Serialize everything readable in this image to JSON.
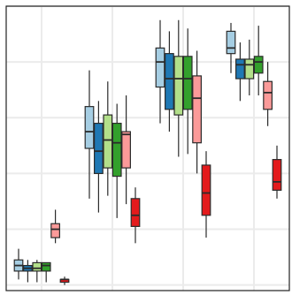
{
  "chart_data": {
    "type": "box",
    "title": "",
    "xlabel": "",
    "ylabel": "",
    "ylim": [
      -0.02,
      1.0
    ],
    "xlim": [
      0.5,
      4.5
    ],
    "grid": true,
    "legend": "none",
    "categories": [
      "",
      "",
      "",
      ""
    ],
    "series": [
      {
        "color": "#a6cee3",
        "boxes": [
          {
            "whislo": 0.02,
            "q1": 0.05,
            "med": 0.07,
            "q3": 0.09,
            "whishi": 0.13
          },
          {
            "whislo": 0.31,
            "q1": 0.49,
            "med": 0.55,
            "q3": 0.64,
            "whishi": 0.77
          },
          {
            "whislo": 0.58,
            "q1": 0.71,
            "med": 0.8,
            "q3": 0.85,
            "whishi": 0.95
          },
          {
            "whislo": 0.76,
            "q1": 0.83,
            "med": 0.85,
            "q3": 0.91,
            "whishi": 0.94
          }
        ]
      },
      {
        "color": "#1f78b4",
        "boxes": [
          {
            "whislo": 0.01,
            "q1": 0.05,
            "med": 0.06,
            "q3": 0.07,
            "whishi": 0.09
          },
          {
            "whislo": 0.26,
            "q1": 0.4,
            "med": 0.48,
            "q3": 0.58,
            "whishi": 0.66
          },
          {
            "whislo": 0.55,
            "q1": 0.63,
            "med": 0.74,
            "q3": 0.83,
            "whishi": 0.91
          },
          {
            "whislo": 0.66,
            "q1": 0.74,
            "med": 0.79,
            "q3": 0.81,
            "whishi": 0.87
          }
        ]
      },
      {
        "color": "#b2df8a",
        "boxes": [
          {
            "whislo": 0.01,
            "q1": 0.05,
            "med": 0.06,
            "q3": 0.08,
            "whishi": 0.09
          },
          {
            "whislo": 0.32,
            "q1": 0.42,
            "med": 0.52,
            "q3": 0.61,
            "whishi": 0.73
          },
          {
            "whislo": 0.46,
            "q1": 0.61,
            "med": 0.74,
            "q3": 0.82,
            "whishi": 0.95
          },
          {
            "whislo": 0.68,
            "q1": 0.74,
            "med": 0.79,
            "q3": 0.81,
            "whishi": 0.88
          }
        ]
      },
      {
        "color": "#33a02c",
        "boxes": [
          {
            "whislo": 0.01,
            "q1": 0.05,
            "med": 0.07,
            "q3": 0.08,
            "whishi": 0.08
          },
          {
            "whislo": 0.24,
            "q1": 0.39,
            "med": 0.51,
            "q3": 0.58,
            "whishi": 0.65
          },
          {
            "whislo": 0.47,
            "q1": 0.63,
            "med": 0.74,
            "q3": 0.82,
            "whishi": 0.92
          },
          {
            "whislo": 0.68,
            "q1": 0.76,
            "med": 0.8,
            "q3": 0.82,
            "whishi": 0.93
          }
        ]
      },
      {
        "color": "#fb9a99",
        "boxes": [
          {
            "whislo": 0.15,
            "q1": 0.17,
            "med": 0.2,
            "q3": 0.22,
            "whishi": 0.27
          },
          {
            "whislo": 0.29,
            "q1": 0.42,
            "med": 0.54,
            "q3": 0.55,
            "whishi": 0.68
          },
          {
            "whislo": 0.4,
            "q1": 0.51,
            "med": 0.67,
            "q3": 0.75,
            "whishi": 0.84
          },
          {
            "whislo": 0.57,
            "q1": 0.63,
            "med": 0.69,
            "q3": 0.73,
            "whishi": 0.8
          }
        ]
      },
      {
        "color": "#e31a1c",
        "boxes": [
          {
            "whislo": 0.0,
            "q1": 0.01,
            "med": 0.02,
            "q3": 0.02,
            "whishi": 0.03
          },
          {
            "whislo": 0.15,
            "q1": 0.21,
            "med": 0.25,
            "q3": 0.31,
            "whishi": 0.35
          },
          {
            "whislo": 0.17,
            "q1": 0.25,
            "med": 0.33,
            "q3": 0.43,
            "whishi": 0.48
          },
          {
            "whislo": 0.31,
            "q1": 0.34,
            "med": 0.37,
            "q3": 0.45,
            "whishi": 0.5
          }
        ]
      }
    ]
  }
}
